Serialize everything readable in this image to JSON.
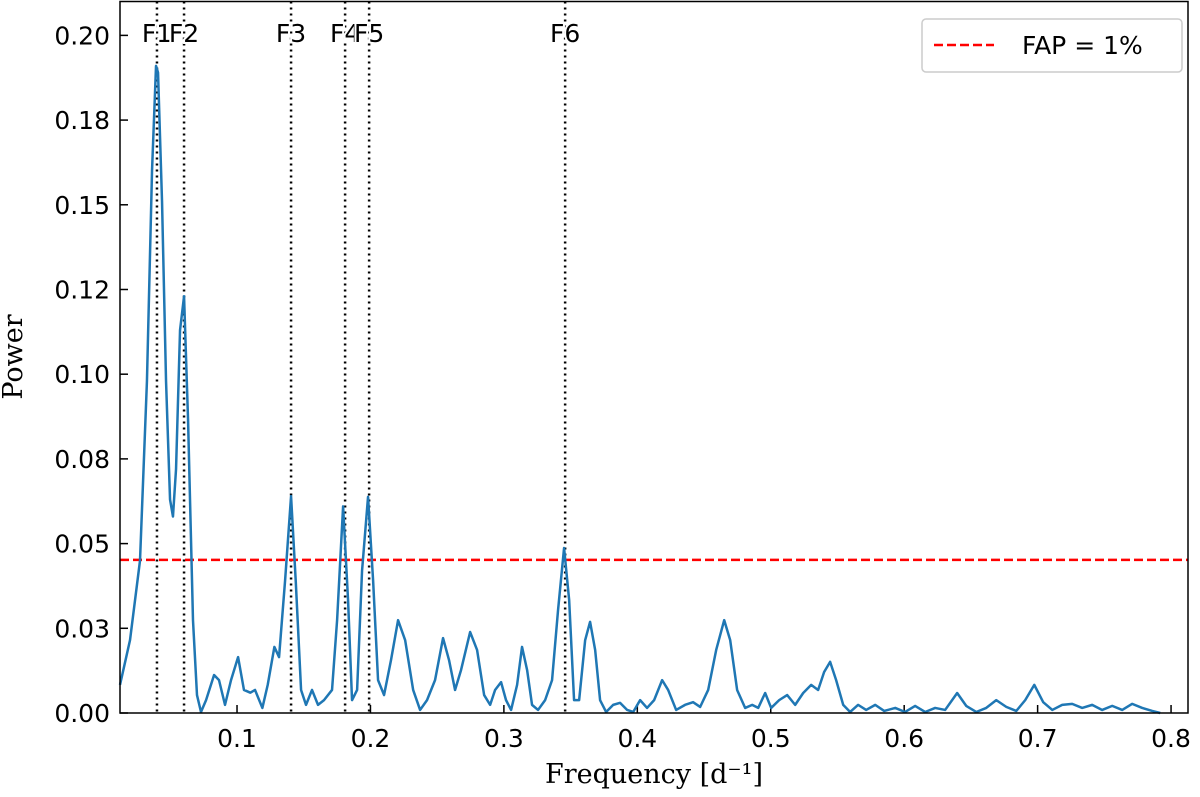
{
  "chart_data": {
    "type": "line",
    "xlabel": "Frequency [d⁻¹]",
    "ylabel": "Power",
    "color": "#1f77b4",
    "xlim": [
      0.0123,
      0.8127
    ],
    "ylim": [
      0,
      0.21
    ],
    "xticks": [
      0.1,
      0.2,
      0.3,
      0.4,
      0.5,
      0.6,
      0.7,
      0.8
    ],
    "yticks": [
      {
        "value": 0,
        "label": "0.00"
      },
      {
        "value": 0.025,
        "label": "0.03"
      },
      {
        "value": 0.05,
        "label": "0.05"
      },
      {
        "value": 0.075,
        "label": "0.08"
      },
      {
        "value": 0.1,
        "label": "0.10"
      },
      {
        "value": 0.125,
        "label": "0.12"
      },
      {
        "value": 0.15,
        "label": "0.15"
      },
      {
        "value": 0.175,
        "label": "0.18"
      },
      {
        "value": 0.2,
        "label": "0.20"
      }
    ],
    "x": [
      0.0123,
      0.0198,
      0.0273,
      0.0325,
      0.0363,
      0.0393,
      0.0408,
      0.0438,
      0.0468,
      0.0498,
      0.052,
      0.0543,
      0.0573,
      0.0603,
      0.0633,
      0.067,
      0.07,
      0.073,
      0.0768,
      0.0828,
      0.0865,
      0.091,
      0.0955,
      0.1008,
      0.1052,
      0.11,
      0.1135,
      0.119,
      0.123,
      0.128,
      0.1315,
      0.136,
      0.1405,
      0.144,
      0.148,
      0.1517,
      0.1562,
      0.1607,
      0.1652,
      0.1712,
      0.175,
      0.1795,
      0.1832,
      0.1862,
      0.19,
      0.1937,
      0.1982,
      0.202,
      0.2057,
      0.2102,
      0.2154,
      0.2207,
      0.226,
      0.232,
      0.2372,
      0.2424,
      0.2484,
      0.2544,
      0.2589,
      0.2634,
      0.2679,
      0.2747,
      0.2799,
      0.2852,
      0.2897,
      0.2934,
      0.2979,
      0.3016,
      0.3054,
      0.3099,
      0.3136,
      0.3174,
      0.3211,
      0.3256,
      0.3309,
      0.3361,
      0.3406,
      0.3451,
      0.3489,
      0.3526,
      0.3564,
      0.3609,
      0.3646,
      0.3684,
      0.3721,
      0.3766,
      0.3819,
      0.3871,
      0.3924,
      0.3969,
      0.4021,
      0.4073,
      0.4126,
      0.4186,
      0.4231,
      0.4291,
      0.4358,
      0.4418,
      0.4471,
      0.4531,
      0.4591,
      0.4651,
      0.4696,
      0.4748,
      0.4808,
      0.4861,
      0.4906,
      0.4958,
      0.5003,
      0.5063,
      0.5123,
      0.5183,
      0.5243,
      0.5303,
      0.5355,
      0.54,
      0.5445,
      0.549,
      0.5543,
      0.5595,
      0.5655,
      0.5715,
      0.5783,
      0.585,
      0.5933,
      0.6007,
      0.6082,
      0.6157,
      0.6232,
      0.6307,
      0.6397,
      0.6465,
      0.654,
      0.6615,
      0.669,
      0.6765,
      0.684,
      0.6907,
      0.6975,
      0.7042,
      0.711,
      0.7184,
      0.7259,
      0.7334,
      0.7409,
      0.7484,
      0.7559,
      0.7634,
      0.7709,
      0.7784,
      0.7859,
      0.7919
    ],
    "values": [
      0.0083,
      0.0215,
      0.045,
      0.098,
      0.16,
      0.191,
      0.189,
      0.151,
      0.098,
      0.063,
      0.058,
      0.072,
      0.113,
      0.123,
      0.0865,
      0.0274,
      0.0053,
      0.0003,
      0.0038,
      0.0112,
      0.0097,
      0.0024,
      0.0097,
      0.0165,
      0.0068,
      0.006,
      0.0068,
      0.0015,
      0.0083,
      0.0195,
      0.0165,
      0.039,
      0.064,
      0.039,
      0.0068,
      0.0024,
      0.0068,
      0.0024,
      0.0038,
      0.0068,
      0.0274,
      0.061,
      0.0334,
      0.0038,
      0.0068,
      0.042,
      0.0638,
      0.039,
      0.0097,
      0.0053,
      0.0156,
      0.0274,
      0.0215,
      0.0068,
      0.0009,
      0.0038,
      0.0097,
      0.0221,
      0.0156,
      0.0068,
      0.0127,
      0.0239,
      0.0186,
      0.0053,
      0.0024,
      0.0068,
      0.0091,
      0.0038,
      0.0009,
      0.0083,
      0.0195,
      0.0127,
      0.0024,
      0.0009,
      0.0038,
      0.0097,
      0.0304,
      0.0487,
      0.0334,
      0.0038,
      0.0038,
      0.0215,
      0.0269,
      0.0186,
      0.0038,
      0.0003,
      0.0024,
      0.003,
      0.0009,
      0.0003,
      0.0038,
      0.0015,
      0.0038,
      0.0097,
      0.0068,
      0.0009,
      0.0024,
      0.0032,
      0.0018,
      0.0068,
      0.0186,
      0.0274,
      0.0215,
      0.0068,
      0.0015,
      0.0024,
      0.0015,
      0.0059,
      0.0015,
      0.0038,
      0.0053,
      0.0024,
      0.0059,
      0.0083,
      0.0068,
      0.0121,
      0.0151,
      0.0097,
      0.0024,
      0.0003,
      0.0024,
      0.0009,
      0.0024,
      0.0006,
      0.0015,
      0.0003,
      0.0021,
      0.0003,
      0.0015,
      0.0009,
      0.0059,
      0.0021,
      0.0003,
      0.0015,
      0.0038,
      0.0018,
      0.0006,
      0.0038,
      0.0083,
      0.0032,
      0.0009,
      0.0024,
      0.0027,
      0.0015,
      0.0024,
      0.0009,
      0.0021,
      0.0009,
      0.0027,
      0.0015,
      0.0006,
      0
    ],
    "hline": {
      "name": "FAP = 1%",
      "value": 0.0452,
      "color": "#ff0000"
    },
    "vlines": [
      {
        "label": "F1",
        "value": 0.04
      },
      {
        "label": "F2",
        "value": 0.0603
      },
      {
        "label": "F3",
        "value": 0.1405
      },
      {
        "label": "F4",
        "value": 0.181
      },
      {
        "label": "F5",
        "value": 0.199
      },
      {
        "label": "F6",
        "value": 0.3459
      }
    ],
    "legend": "upper right"
  }
}
